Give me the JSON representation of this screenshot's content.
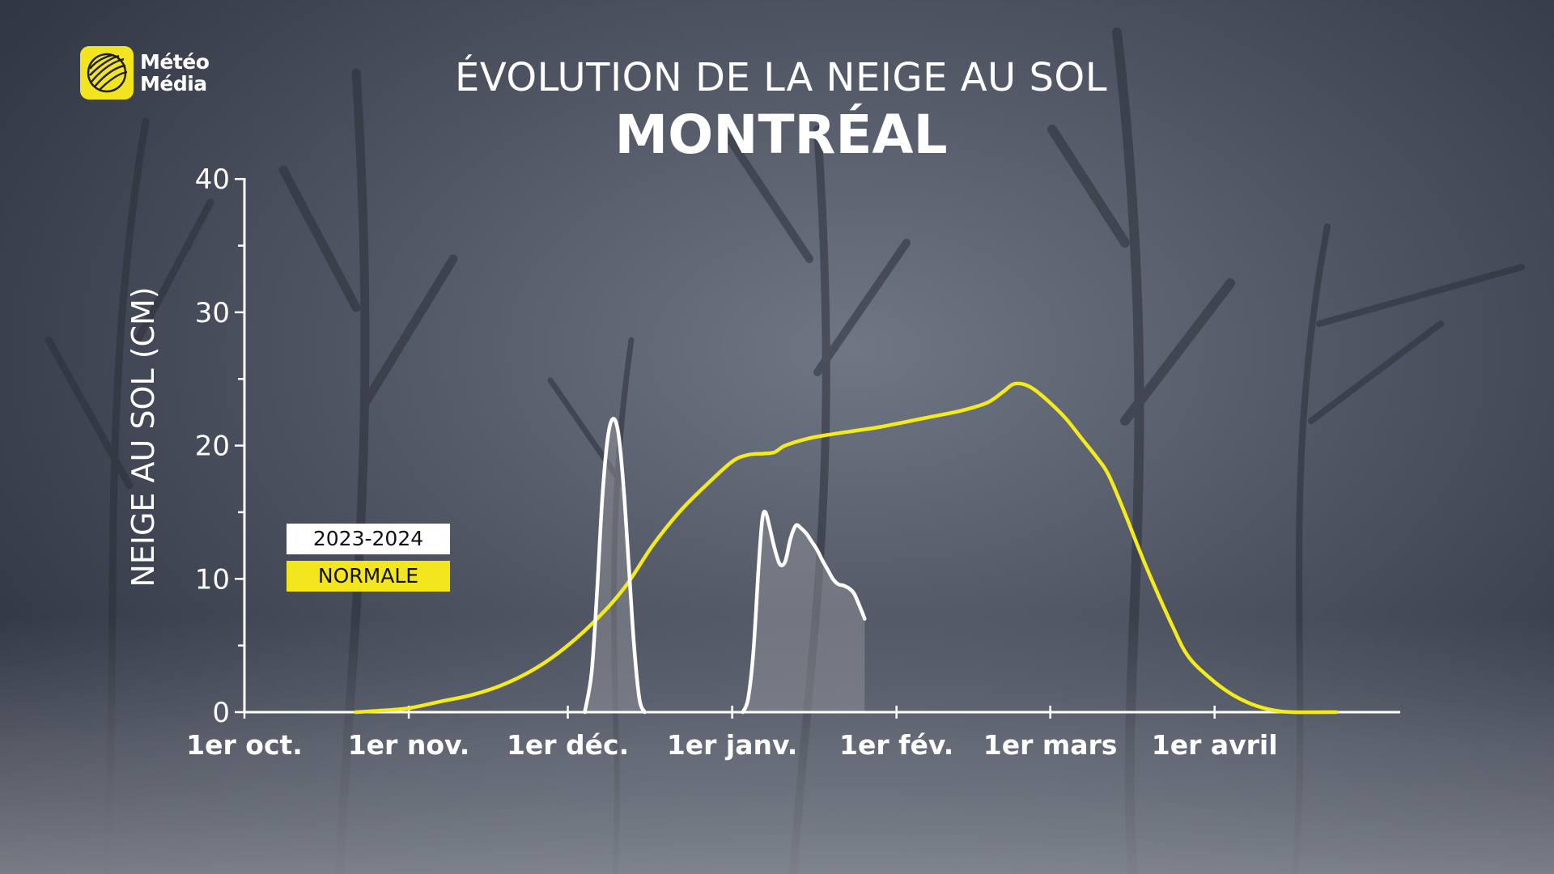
{
  "header": {
    "brand_line1": "Météo",
    "brand_line2": "Média",
    "title": "ÉVOLUTION DE LA NEIGE AU SOL",
    "subtitle": "MONTRÉAL"
  },
  "legend": {
    "season": "2023-2024",
    "normal": "NORMALE"
  },
  "colors": {
    "normal_line": "#f5ea1a",
    "season_line": "#ffffff",
    "season_fill": "rgba(150,152,160,0.45)",
    "axis": "#ffffff",
    "logo": "#f2e51f"
  },
  "chart_data": {
    "type": "line",
    "title": "ÉVOLUTION DE LA NEIGE AU SOL",
    "subtitle": "MONTRÉAL",
    "ylabel": "NEIGE AU SOL (CM)",
    "xlabel": "",
    "ylim": [
      0,
      40
    ],
    "yticks": [
      0,
      10,
      20,
      30,
      40
    ],
    "xlim": [
      0,
      213
    ],
    "xticks": [
      {
        "day": 0,
        "label": "1er oct."
      },
      {
        "day": 31,
        "label": "1er nov."
      },
      {
        "day": 61,
        "label": "1er déc."
      },
      {
        "day": 92,
        "label": "1er janv."
      },
      {
        "day": 123,
        "label": "1er fév."
      },
      {
        "day": 152,
        "label": "1er mars"
      },
      {
        "day": 183,
        "label": "1er avril"
      }
    ],
    "grid": false,
    "series": [
      {
        "name": "2023-2024",
        "style": "line-with-fill",
        "segments": [
          [
            [
              64.2,
              0
            ],
            [
              65.5,
              3
            ],
            [
              66.5,
              9
            ],
            [
              67.5,
              16
            ],
            [
              68.5,
              20.5
            ],
            [
              69.5,
              22
            ],
            [
              70.5,
              21
            ],
            [
              71.5,
              17
            ],
            [
              72.5,
              11
            ],
            [
              73.5,
              5
            ],
            [
              74.5,
              1
            ],
            [
              75.5,
              0
            ]
          ],
          [
            [
              94,
              0
            ],
            [
              95,
              1
            ],
            [
              96,
              4.5
            ],
            [
              97,
              11
            ],
            [
              97.7,
              14.5
            ],
            [
              98.3,
              15
            ],
            [
              99,
              14
            ],
            [
              100,
              12.3
            ],
            [
              101,
              11.1
            ],
            [
              102,
              11.3
            ],
            [
              103,
              13
            ],
            [
              104,
              14
            ],
            [
              105,
              13.8
            ],
            [
              106,
              13.4
            ],
            [
              107,
              12.8
            ],
            [
              108,
              12.2
            ],
            [
              109,
              11.4
            ],
            [
              110,
              10.7
            ],
            [
              111,
              10
            ],
            [
              112,
              9.6
            ],
            [
              113,
              9.5
            ],
            [
              114,
              9.3
            ],
            [
              115,
              8.9
            ],
            [
              116,
              8
            ],
            [
              117,
              7
            ]
          ]
        ]
      },
      {
        "name": "NORMALE",
        "style": "line",
        "points": [
          [
            21,
            0
          ],
          [
            25,
            0.1
          ],
          [
            31,
            0.3
          ],
          [
            37,
            0.8
          ],
          [
            43,
            1.3
          ],
          [
            49,
            2.1
          ],
          [
            55,
            3.3
          ],
          [
            61,
            5
          ],
          [
            67,
            7.2
          ],
          [
            72,
            9.5
          ],
          [
            77,
            12.5
          ],
          [
            82,
            15
          ],
          [
            87,
            17
          ],
          [
            92,
            18.8
          ],
          [
            95,
            19.3
          ],
          [
            98,
            19.4
          ],
          [
            100,
            19.5
          ],
          [
            102,
            20
          ],
          [
            106,
            20.5
          ],
          [
            110,
            20.8
          ],
          [
            115,
            21.1
          ],
          [
            120,
            21.4
          ],
          [
            125,
            21.8
          ],
          [
            130,
            22.2
          ],
          [
            135,
            22.6
          ],
          [
            140,
            23.2
          ],
          [
            143,
            24
          ],
          [
            145,
            24.6
          ],
          [
            147,
            24.6
          ],
          [
            149,
            24.2
          ],
          [
            152,
            23.2
          ],
          [
            155,
            22
          ],
          [
            158,
            20.5
          ],
          [
            161,
            19
          ],
          [
            163,
            17.8
          ],
          [
            166,
            15
          ],
          [
            170,
            11
          ],
          [
            175,
            6.5
          ],
          [
            178,
            4.2
          ],
          [
            182,
            2.6
          ],
          [
            186,
            1.4
          ],
          [
            190,
            0.6
          ],
          [
            194,
            0.15
          ],
          [
            198,
            0
          ],
          [
            206,
            0
          ]
        ]
      }
    ]
  }
}
